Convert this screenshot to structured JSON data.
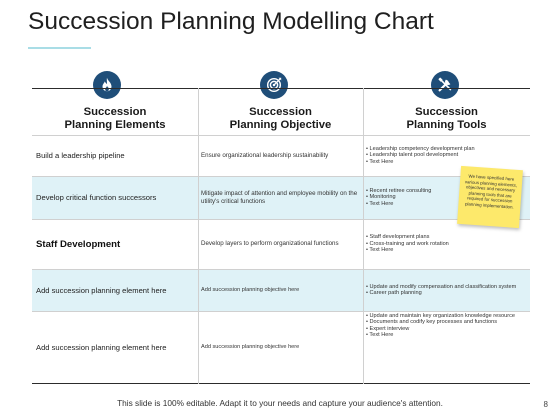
{
  "slide": {
    "title": "Succession Planning Modelling Chart",
    "footer_text": "This slide is 100% editable. Adapt it to your needs and capture your audience's attention.",
    "page_number": "8",
    "accent_color": "#1f4e79",
    "band_color": "#dff2f7",
    "sticky_color": "#fde96b"
  },
  "table": {
    "headers": [
      {
        "line1": "Succession",
        "line2": "Planning Elements",
        "icon": "fire-icon"
      },
      {
        "line1": "Succession",
        "line2": "Planning  Objective",
        "icon": "target-icon"
      },
      {
        "line1": "Succession",
        "line2": "Planning Tools",
        "icon": "tools-icon"
      }
    ],
    "rows": [
      {
        "element": "Build a leadership pipeline",
        "objective": "Ensure organizational leadership sustainability",
        "tools": [
          "Leadership competency development plan",
          "Leadership talent pool development",
          "Text Here"
        ]
      },
      {
        "element": "Develop critical function successors",
        "objective": "Mitigate impact of attention and employee mobility on the utility's critical  functions",
        "tools": [
          "Recent retiree consulting",
          "Monitoring",
          "Text Here"
        ]
      },
      {
        "element": "Staff Development",
        "objective": "Develop layers to perform organizational functions",
        "tools": [
          "Staff development plans",
          "Cross-training and work rotation",
          "Text Here"
        ]
      },
      {
        "element": "Add succession planning element here",
        "objective": "Add succession planning objective here",
        "tools": [
          "Update and modify compensation and classification system",
          "Career path planning"
        ]
      },
      {
        "element": "Add succession planning element here",
        "objective": "Add succession planning objective here",
        "tools": [
          "Update and maintain key organization knowledge resource",
          "Documents and codify key processes and functions",
          "Expert interview",
          "Text Here"
        ]
      }
    ]
  },
  "sticky_note": {
    "text": "We have specified here various  planning elements, objectives and necessary planning tools that are required for succession  planning implementation."
  }
}
